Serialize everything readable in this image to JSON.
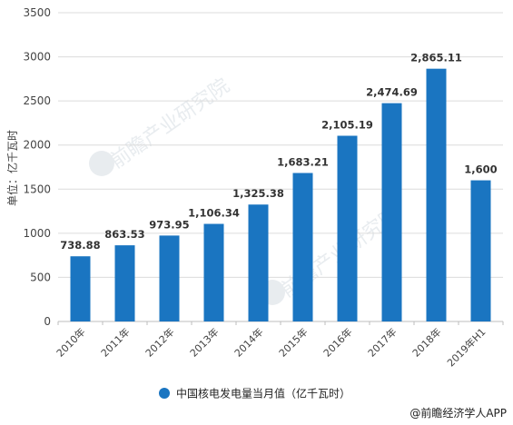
{
  "chart_data": {
    "type": "bar",
    "categories": [
      "2010年",
      "2011年",
      "2012年",
      "2013年",
      "2014年",
      "2015年",
      "2016年",
      "2017年",
      "2018年",
      "2019年H1"
    ],
    "values": [
      738.88,
      863.53,
      973.95,
      1106.34,
      1325.38,
      1683.21,
      2105.19,
      2474.69,
      2865.11,
      1600
    ],
    "value_labels": [
      "738.88",
      "863.53",
      "973.95",
      "1,106.34",
      "1,325.38",
      "1,683.21",
      "2,105.19",
      "2,474.69",
      "2,865.11",
      "1,600"
    ],
    "ylabel": "单位：亿千瓦时",
    "ylim": [
      0,
      3500
    ],
    "yticks": [
      0,
      500,
      1000,
      1500,
      2000,
      2500,
      3000,
      3500
    ],
    "legend": "中国核电发电量当月值（亿千瓦时）",
    "legend_position": "bottom",
    "bar_color": "#1a75c1",
    "grid": true
  },
  "credit": "@前瞻经济学人APP",
  "watermark": "前瞻产业研究院"
}
